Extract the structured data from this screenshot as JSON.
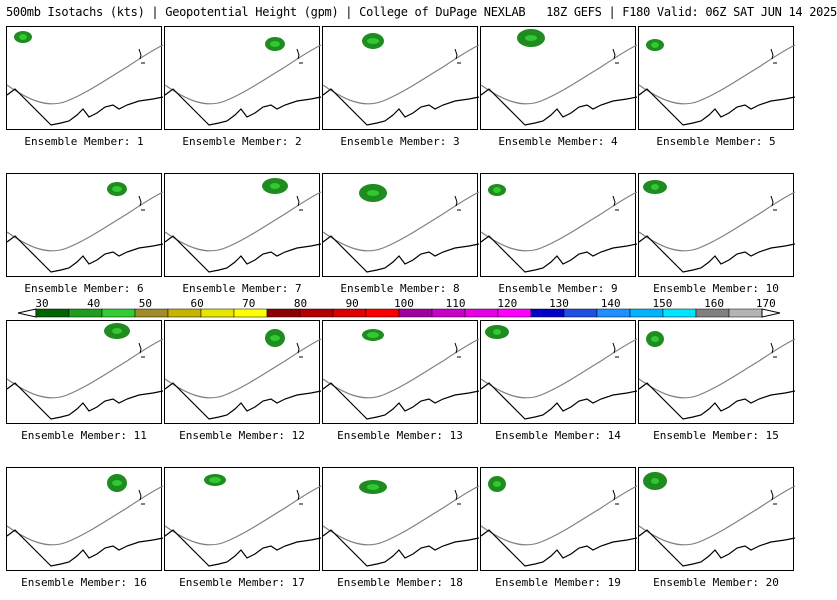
{
  "header": {
    "title": "500mb Isotachs (kts) | Geopotential Height (gpm) | College of DuPage NEXLAB   18Z GEFS | F180 Valid: 06Z SAT JUN 14 2025"
  },
  "panels": [
    {
      "label": "Ensemble Member: 1"
    },
    {
      "label": "Ensemble Member: 2"
    },
    {
      "label": "Ensemble Member: 3"
    },
    {
      "label": "Ensemble Member: 4"
    },
    {
      "label": "Ensemble Member: 5"
    },
    {
      "label": "Ensemble Member: 6"
    },
    {
      "label": "Ensemble Member: 7"
    },
    {
      "label": "Ensemble Member: 8"
    },
    {
      "label": "Ensemble Member: 9"
    },
    {
      "label": "Ensemble Member: 10"
    },
    {
      "label": "Ensemble Member: 11"
    },
    {
      "label": "Ensemble Member: 12"
    },
    {
      "label": "Ensemble Member: 13"
    },
    {
      "label": "Ensemble Member: 14"
    },
    {
      "label": "Ensemble Member: 15"
    },
    {
      "label": "Ensemble Member: 16"
    },
    {
      "label": "Ensemble Member: 17"
    },
    {
      "label": "Ensemble Member: 18"
    },
    {
      "label": "Ensemble Member: 19"
    },
    {
      "label": "Ensemble Member: 20"
    }
  ],
  "colorbar": {
    "ticks": [
      "30",
      "40",
      "50",
      "60",
      "70",
      "80",
      "90",
      "100",
      "110",
      "120",
      "130",
      "140",
      "150",
      "160",
      "170"
    ],
    "colors": [
      "#006400",
      "#1e9e1e",
      "#32cd32",
      "#a08c28",
      "#c8b400",
      "#e6e600",
      "#ffff00",
      "#8b0000",
      "#b40000",
      "#dc0000",
      "#ff0000",
      "#a000a0",
      "#c800c8",
      "#e600e6",
      "#ff00ff",
      "#0000c8",
      "#1e50e6",
      "#1e90ff",
      "#00b4ff",
      "#00e6ff",
      "#808080",
      "#b4b4b4"
    ]
  },
  "styles": {
    "coast_color": "#000000",
    "contour_color": "#808080",
    "isotach_dark": "#1e8c1e",
    "isotach_light": "#32c832"
  }
}
